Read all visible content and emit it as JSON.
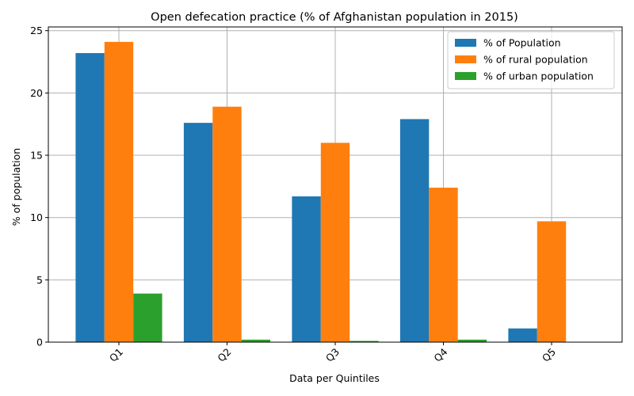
{
  "chart_data": {
    "type": "bar",
    "title": "Open defecation practice (% of Afghanistan population in 2015)",
    "xlabel": "Data per Quintiles",
    "ylabel": "% of population",
    "categories": [
      "Q1",
      "Q2",
      "Q3",
      "Q4",
      "Q5"
    ],
    "series": [
      {
        "name": "% of Population",
        "color": "#1f77b4",
        "values": [
          23.2,
          17.6,
          11.7,
          17.9,
          1.1
        ]
      },
      {
        "name": "% of rural population",
        "color": "#ff7f0e",
        "values": [
          24.1,
          18.9,
          16.0,
          12.4,
          9.7
        ]
      },
      {
        "name": "% of urban population",
        "color": "#2ca02c",
        "values": [
          3.9,
          0.2,
          0.1,
          0.2,
          0.0
        ]
      }
    ],
    "ylim": [
      0,
      25.3
    ],
    "yticks": [
      0,
      5,
      10,
      15,
      20,
      25
    ],
    "grid": true,
    "legend_position": "upper right",
    "xtick_rotation": 45
  }
}
